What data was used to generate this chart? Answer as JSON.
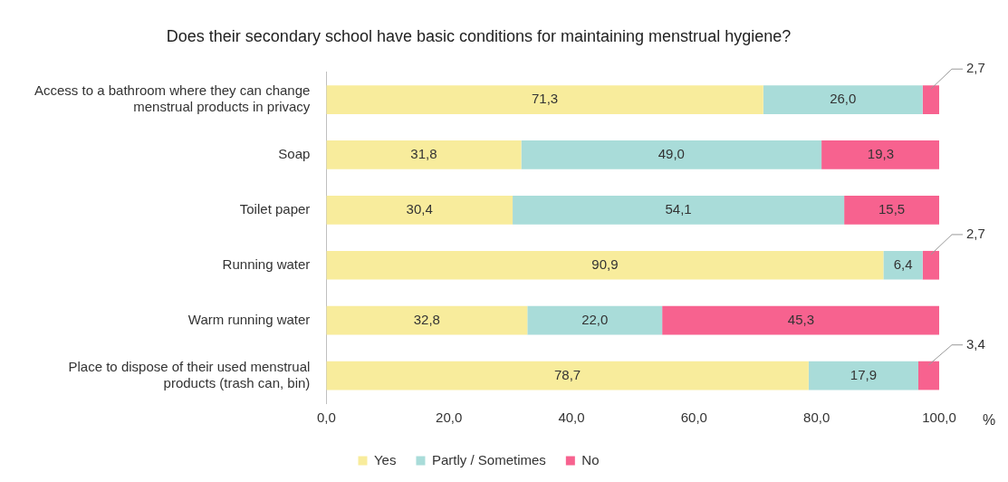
{
  "chart_data": {
    "type": "bar",
    "orientation": "horizontal",
    "stacked": true,
    "title": "Does their secondary school have basic conditions for maintaining menstrual hygiene?",
    "xlabel": "%",
    "categories": [
      "Access to a bathroom where they can change menstrual products in privacy",
      "Soap",
      "Toilet paper",
      "Running water",
      "Warm running water",
      "Place to dispose of their used menstrual products (trash can, bin)"
    ],
    "series": [
      {
        "name": "Yes",
        "color": "#f8ec9c",
        "values": [
          71.3,
          31.8,
          30.4,
          90.9,
          32.8,
          78.7
        ],
        "value_labels": [
          "71,3",
          "31,8",
          "30,4",
          "90,9",
          "32,8",
          "78,7"
        ]
      },
      {
        "name": "Partly / Sometimes",
        "color": "#a9dcd9",
        "values": [
          26.0,
          49.0,
          54.1,
          6.4,
          22.0,
          17.9
        ],
        "value_labels": [
          "26,0",
          "49,0",
          "54,1",
          "6,4",
          "22,0",
          "17,9"
        ]
      },
      {
        "name": "No",
        "color": "#f7628f",
        "values": [
          2.7,
          19.3,
          15.5,
          2.7,
          45.3,
          3.4
        ],
        "value_labels": [
          "2,7",
          "19,3",
          "15,5",
          "2,7",
          "45,3",
          "3,4"
        ]
      }
    ],
    "xlim": [
      0,
      100
    ],
    "xticks": [
      {
        "value": 0,
        "label": "0,0"
      },
      {
        "value": 20,
        "label": "20,0"
      },
      {
        "value": 40,
        "label": "40,0"
      },
      {
        "value": 60,
        "label": "60,0"
      },
      {
        "value": 80,
        "label": "80,0"
      },
      {
        "value": 100,
        "label": "100,0"
      }
    ],
    "grid": false,
    "legend": "bottom"
  }
}
